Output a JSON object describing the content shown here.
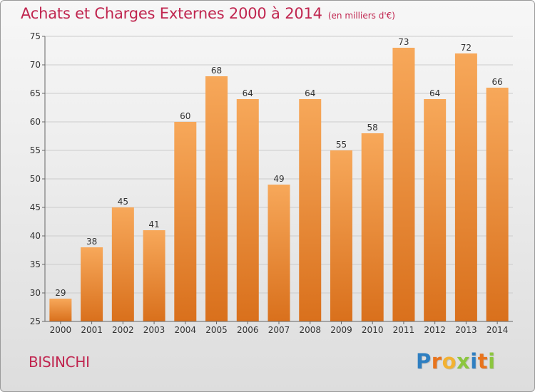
{
  "header": {
    "title": "Achats et Charges Externes 2000 à 2014",
    "unit": "(en milliers d'€)"
  },
  "footer": {
    "commune": "BISINCHI",
    "logo_text": "Proxiti",
    "logo_letters": [
      {
        "ch": "P",
        "color": "#2f7fc1"
      },
      {
        "ch": "r",
        "color": "#e8741d"
      },
      {
        "ch": "o",
        "color": "#f2b233"
      },
      {
        "ch": "x",
        "color": "#8cc63f"
      },
      {
        "ch": "i",
        "color": "#2f7fc1"
      },
      {
        "ch": "t",
        "color": "#e8741d"
      },
      {
        "ch": "i",
        "color": "#8cc63f"
      }
    ]
  },
  "colors": {
    "accent": "#c0254f",
    "bar_top": "#f7a85a",
    "bar_bottom": "#d9701c",
    "axis_text": "#333333",
    "grid": "#cccccc"
  },
  "chart_data": {
    "type": "bar",
    "title": "Achats et Charges Externes 2000 à 2014",
    "xlabel": "",
    "ylabel": "",
    "categories": [
      "2000",
      "2001",
      "2002",
      "2003",
      "2004",
      "2005",
      "2006",
      "2007",
      "2008",
      "2009",
      "2010",
      "2011",
      "2012",
      "2013",
      "2014"
    ],
    "values": [
      29,
      38,
      45,
      41,
      60,
      68,
      64,
      49,
      64,
      55,
      58,
      73,
      64,
      72,
      66
    ],
    "ylim": [
      25,
      75
    ],
    "yticks": [
      25,
      30,
      35,
      40,
      45,
      50,
      55,
      60,
      65,
      70,
      75
    ],
    "grid": true,
    "data_labels": true
  }
}
